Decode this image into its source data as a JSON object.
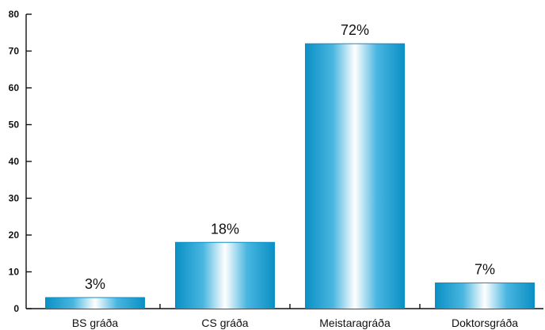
{
  "chart_data": {
    "type": "bar",
    "title": "",
    "xlabel": "",
    "ylabel": "",
    "categories": [
      "BS gráða",
      "CS gráða",
      "Meistaragráða",
      "Doktorsgráða"
    ],
    "values": [
      3,
      18,
      72,
      7
    ],
    "data_labels": [
      "3%",
      "18%",
      "72%",
      "7%"
    ],
    "ylim": [
      0,
      80
    ],
    "yticks": [
      0,
      10,
      20,
      30,
      40,
      50,
      60,
      70,
      80
    ],
    "grid": false,
    "legend": "none",
    "colors": {
      "bar_edge": "#0a8fc4",
      "bar_mid": "#7fd0ec",
      "bar_center": "#ffffff",
      "axis": "#111111",
      "text": "#111111"
    }
  }
}
